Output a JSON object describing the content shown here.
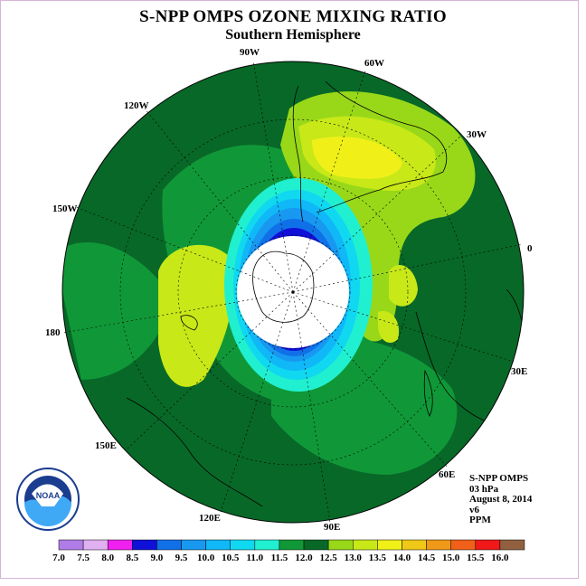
{
  "title": "S-NPP OMPS OZONE MIXING RATIO",
  "subtitle": "Southern Hemisphere",
  "longitude_labels": [
    "90W",
    "60W",
    "30W",
    "0",
    "30E",
    "60E",
    "90E",
    "120E",
    "150E",
    "180",
    "150W",
    "120W"
  ],
  "info": {
    "instrument": "S-NPP OMPS",
    "level": "03 hPa",
    "date": "August 8, 2014",
    "version": "v6",
    "units": "PPM"
  },
  "logo_text": "NOAA",
  "colorbar": {
    "ticks": [
      "7.0",
      "7.5",
      "8.0",
      "8.5",
      "9.0",
      "9.5",
      "10.0",
      "10.5",
      "11.0",
      "11.5",
      "12.0",
      "12.5",
      "13.0",
      "13.5",
      "14.0",
      "14.5",
      "15.0",
      "15.5",
      "16.0"
    ],
    "colors": [
      "#b07de8",
      "#e0b0f0",
      "#f020f0",
      "#1010d8",
      "#1070e8",
      "#1898f0",
      "#10b8f8",
      "#10d8f0",
      "#20f0d0",
      "#109838",
      "#086828",
      "#98d818",
      "#c8e818",
      "#f0f018",
      "#f0c818",
      "#f09818",
      "#f06018",
      "#f01818",
      "#906040"
    ]
  }
}
